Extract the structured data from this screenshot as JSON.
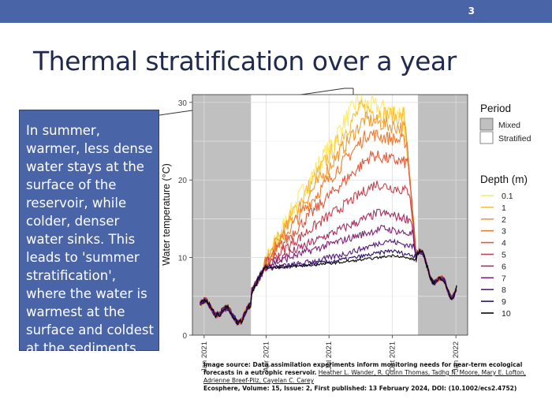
{
  "slide": {
    "number": "3",
    "title": "Thermal stratification over a year",
    "callout": "In summer, warmer, less dense water stays at the surface of the reservoir, while colder, denser water sinks. This leads to 'summer stratification', where the water is warmest at the surface and coldest at the sediments.",
    "source": {
      "lead": "Image source: Data assimilation experiments inform monitoring needs for near-term ecological forecasts in a eutrophic reservoir.",
      "authors": "Heather L. Wander, R. Quinn Thomas, Tadhg N. Moore, Mary E. Lofton, Adrienne Breef-Pilz, Cayelan C. Carey",
      "citation": "Ecosphere, Volume: 15, Issue: 2, First published: 13 February 2024, DOI: (10.1002/ecs2.4752)"
    }
  },
  "colors": {
    "header_bar": "#4a64a8",
    "callout_fill": "#4a64a8",
    "title_text": "#1f2a4e",
    "mixed_shade": "#c0c0c0"
  },
  "chart_data": {
    "type": "line",
    "ylabel": "Water temperature (°C)",
    "xlabel": "",
    "ylim": [
      0,
      31
    ],
    "yticks": [
      0,
      10,
      20,
      30
    ],
    "xlim": [
      "2020-12-15",
      "2022-01-18"
    ],
    "xticks": [
      {
        "date": "2021-01-01",
        "label": "Jan 2021"
      },
      {
        "date": "2021-04-01",
        "label": "Apr 2021"
      },
      {
        "date": "2021-07-01",
        "label": "Jul 2021"
      },
      {
        "date": "2021-10-01",
        "label": "Oct 2021"
      },
      {
        "date": "2022-01-01",
        "label": "Jan 2022"
      }
    ],
    "periods": [
      {
        "name": "Mixed",
        "start": "2020-12-15",
        "end": "2021-03-10"
      },
      {
        "name": "Stratified",
        "start": "2021-03-10",
        "end": "2021-11-07"
      },
      {
        "name": "Mixed",
        "start": "2021-11-07",
        "end": "2022-01-18"
      }
    ],
    "legend_period": {
      "title": "Period",
      "items": [
        {
          "label": "Mixed",
          "fill": "#c0c0c0"
        },
        {
          "label": "Stratified",
          "fill": "#ffffff"
        }
      ]
    },
    "legend_depth_title": "Depth (m)",
    "grid": true,
    "legend_position": "right",
    "series": [
      {
        "name": "0.1",
        "color": "#fbe96a",
        "peak": 30.0
      },
      {
        "name": "1",
        "color": "#f8c13a",
        "peak": 29.2
      },
      {
        "name": "2",
        "color": "#f49b2c",
        "peak": 27.8
      },
      {
        "name": "3",
        "color": "#ee7a30",
        "peak": 26.0
      },
      {
        "name": "4",
        "color": "#e05a3c",
        "peak": 23.2
      },
      {
        "name": "5",
        "color": "#c8404e",
        "peak": 19.5
      },
      {
        "name": "6",
        "color": "#a52f63",
        "peak": 15.8
      },
      {
        "name": "7",
        "color": "#7e2374",
        "peak": 13.8
      },
      {
        "name": "8",
        "color": "#561a7e",
        "peak": 12.2
      },
      {
        "name": "9",
        "color": "#2e1266",
        "peak": 10.9
      },
      {
        "name": "10",
        "color": "#050505",
        "peak": 10.3
      }
    ]
  }
}
